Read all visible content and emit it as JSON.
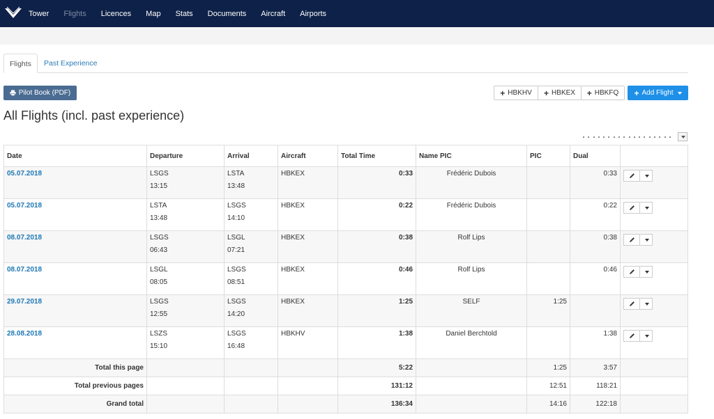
{
  "nav": {
    "items": [
      {
        "label": "Tower",
        "active": false
      },
      {
        "label": "Flights",
        "active": true
      },
      {
        "label": "Licences",
        "active": false
      },
      {
        "label": "Map",
        "active": false
      },
      {
        "label": "Stats",
        "active": false
      },
      {
        "label": "Documents",
        "active": false
      },
      {
        "label": "Aircraft",
        "active": false
      },
      {
        "label": "Airports",
        "active": false
      }
    ]
  },
  "tabs": {
    "flights": "Flights",
    "past": "Past Experience"
  },
  "toolbar": {
    "pilot_book": "Pilot Book (PDF)",
    "aircraft_buttons": [
      "HBKHV",
      "HBKEX",
      "HBKFQ"
    ],
    "add_flight": "Add Flight"
  },
  "title": "All Flights (incl. past experience)",
  "table": {
    "headers": [
      "Date",
      "Departure",
      "Arrival",
      "Aircraft",
      "Total Time",
      "Name PIC",
      "PIC",
      "Dual",
      ""
    ],
    "rows": [
      {
        "date": "05.07.2018",
        "dep": "LSGS",
        "dep_time": "13:15",
        "arr": "LSTA",
        "arr_time": "13:48",
        "aircraft": "HBKEX",
        "total": "0:33",
        "pic_name": "Frédéric Dubois",
        "pic": "",
        "dual": "0:33"
      },
      {
        "date": "05.07.2018",
        "dep": "LSTA",
        "dep_time": "13:48",
        "arr": "LSGS",
        "arr_time": "14:10",
        "aircraft": "HBKEX",
        "total": "0:22",
        "pic_name": "Frédéric Dubois",
        "pic": "",
        "dual": "0:22"
      },
      {
        "date": "08.07.2018",
        "dep": "LSGS",
        "dep_time": "06:43",
        "arr": "LSGL",
        "arr_time": "07:21",
        "aircraft": "HBKEX",
        "total": "0:38",
        "pic_name": "Rolf Lips",
        "pic": "",
        "dual": "0:38"
      },
      {
        "date": "08.07.2018",
        "dep": "LSGL",
        "dep_time": "08:05",
        "arr": "LSGS",
        "arr_time": "08:51",
        "aircraft": "HBKEX",
        "total": "0:46",
        "pic_name": "Rolf Lips",
        "pic": "",
        "dual": "0:46"
      },
      {
        "date": "29.07.2018",
        "dep": "LSGS",
        "dep_time": "12:55",
        "arr": "LSGS",
        "arr_time": "14:20",
        "aircraft": "HBKEX",
        "total": "1:25",
        "pic_name": "SELF",
        "pic": "1:25",
        "dual": ""
      },
      {
        "date": "28.08.2018",
        "dep": "LSZS",
        "dep_time": "15:10",
        "arr": "LSGS",
        "arr_time": "16:48",
        "aircraft": "HBKHV",
        "total": "1:38",
        "pic_name": "Daniel Berchtold",
        "pic": "",
        "dual": "1:38"
      }
    ],
    "totals": [
      {
        "label": "Total this page",
        "total": "5:22",
        "pic": "1:25",
        "dual": "3:57"
      },
      {
        "label": "Total previous pages",
        "total": "131:12",
        "pic": "12:51",
        "dual": "118:21"
      },
      {
        "label": "Grand total",
        "total": "136:34",
        "pic": "14:16",
        "dual": "122:18"
      }
    ]
  },
  "colors": {
    "navbar": "#0e2148",
    "link": "#1c77b5",
    "primary": "#1e90e8",
    "pilot_button": "#4b6c92"
  },
  "icons": {
    "logo": "wings-logo-icon",
    "print": "print-icon",
    "plus": "plus-icon",
    "edit": "pencil-icon",
    "dropdown": "caret-down-icon"
  }
}
